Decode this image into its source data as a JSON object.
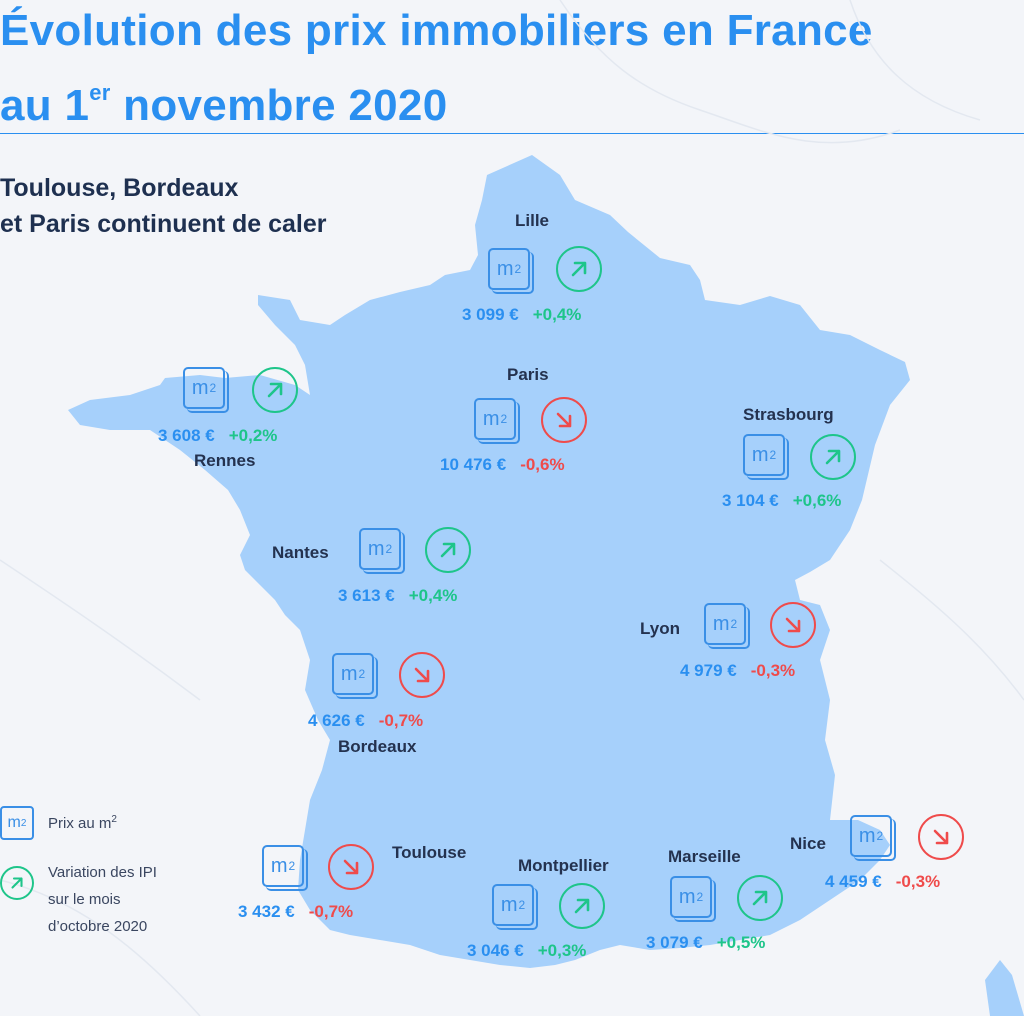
{
  "title": {
    "line1": "Évolution des prix immobiliers en France",
    "line2_prefix": "au 1",
    "line2_sup": "er",
    "line2_suffix": " novembre 2020"
  },
  "subtitle": {
    "line1": "Toulouse, Bordeaux",
    "line2": "et Paris continuent de caler"
  },
  "m2_label": "m",
  "m2_sup": "2",
  "cities": [
    {
      "name": "Lille",
      "price": "3 099 €",
      "variation": "+0,4%",
      "trend": "up"
    },
    {
      "name": "Paris",
      "price": "10 476 €",
      "variation": "-0,6%",
      "trend": "down"
    },
    {
      "name": "Rennes",
      "price": "3 608 €",
      "variation": "+0,2%",
      "trend": "up"
    },
    {
      "name": "Strasbourg",
      "price": "3 104 €",
      "variation": "+0,6%",
      "trend": "up"
    },
    {
      "name": "Nantes",
      "price": "3 613 €",
      "variation": "+0,4%",
      "trend": "up"
    },
    {
      "name": "Lyon",
      "price": "4 979 €",
      "variation": "-0,3%",
      "trend": "down"
    },
    {
      "name": "Bordeaux",
      "price": "4 626 €",
      "variation": "-0,7%",
      "trend": "down"
    },
    {
      "name": "Nice",
      "price": "4 459 €",
      "variation": "-0,3%",
      "trend": "down"
    },
    {
      "name": "Toulouse",
      "price": "3 432 €",
      "variation": "-0,7%",
      "trend": "down"
    },
    {
      "name": "Montpellier",
      "price": "3 046 €",
      "variation": "+0,3%",
      "trend": "up"
    },
    {
      "name": "Marseille",
      "price": "3 079 €",
      "variation": "+0,5%",
      "trend": "up"
    }
  ],
  "legend": {
    "m2_text": "Prix au m",
    "m2_text_sup": "2",
    "variation_lines": [
      "Variation des IPI",
      "sur le mois",
      "d’octobre 2020"
    ]
  },
  "colors": {
    "title": "#2a8ff0",
    "map_fill": "#a6d0fb",
    "up": "#1ec58a",
    "down": "#ef4b4b",
    "price": "#2a8ff0",
    "city_name": "#24324f"
  },
  "icons": {
    "price": "m2-square-icon",
    "up": "arrow-up-right-icon",
    "down": "arrow-down-right-icon"
  }
}
